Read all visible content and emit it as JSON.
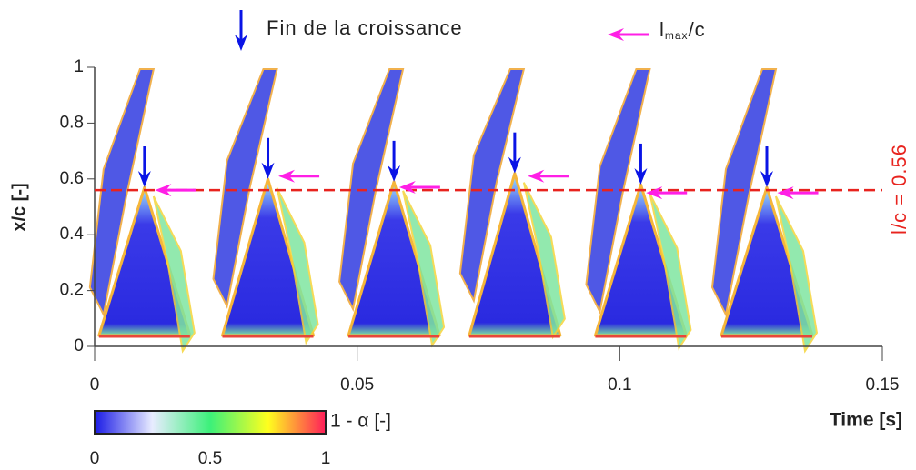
{
  "chart_data": {
    "type": "contour",
    "xlabel": "Time [s]",
    "ylabel": "x/c [-]",
    "xlim": [
      0,
      0.15
    ],
    "xticks": [
      0,
      0.05,
      0.1,
      0.15
    ],
    "ylim": [
      0,
      1
    ],
    "yticks": [
      0,
      0.2,
      0.4,
      0.6,
      0.8,
      1
    ],
    "series": [
      {
        "name": "Fin de la croissance",
        "color": "#0a14e6",
        "marker": "down-arrow",
        "x": [
          0.0095,
          0.033,
          0.057,
          0.08,
          0.104,
          0.128
        ],
        "y": [
          0.57,
          0.6,
          0.59,
          0.62,
          0.58,
          0.57
        ]
      },
      {
        "name": "l",
        "name_sub": "max",
        "name_suffix": "/c",
        "color": "#ff1fe6",
        "marker": "left-arrow",
        "x": [
          0.0115,
          0.035,
          0.058,
          0.0825,
          0.105,
          0.13
        ],
        "y": [
          0.56,
          0.61,
          0.57,
          0.61,
          0.55,
          0.55
        ]
      }
    ],
    "hline": {
      "value": 0.56,
      "label": "l/c = 0.56",
      "color": "#e8231e"
    },
    "colorbar": {
      "label": "1 - α [-]",
      "lim": [
        0,
        1
      ],
      "ticks": [
        0,
        0.5,
        1
      ],
      "colors": [
        "#1a1ae6",
        "#e8ecff",
        "#3cf07a",
        "#ffff1e",
        "#ff1e5a"
      ]
    }
  }
}
